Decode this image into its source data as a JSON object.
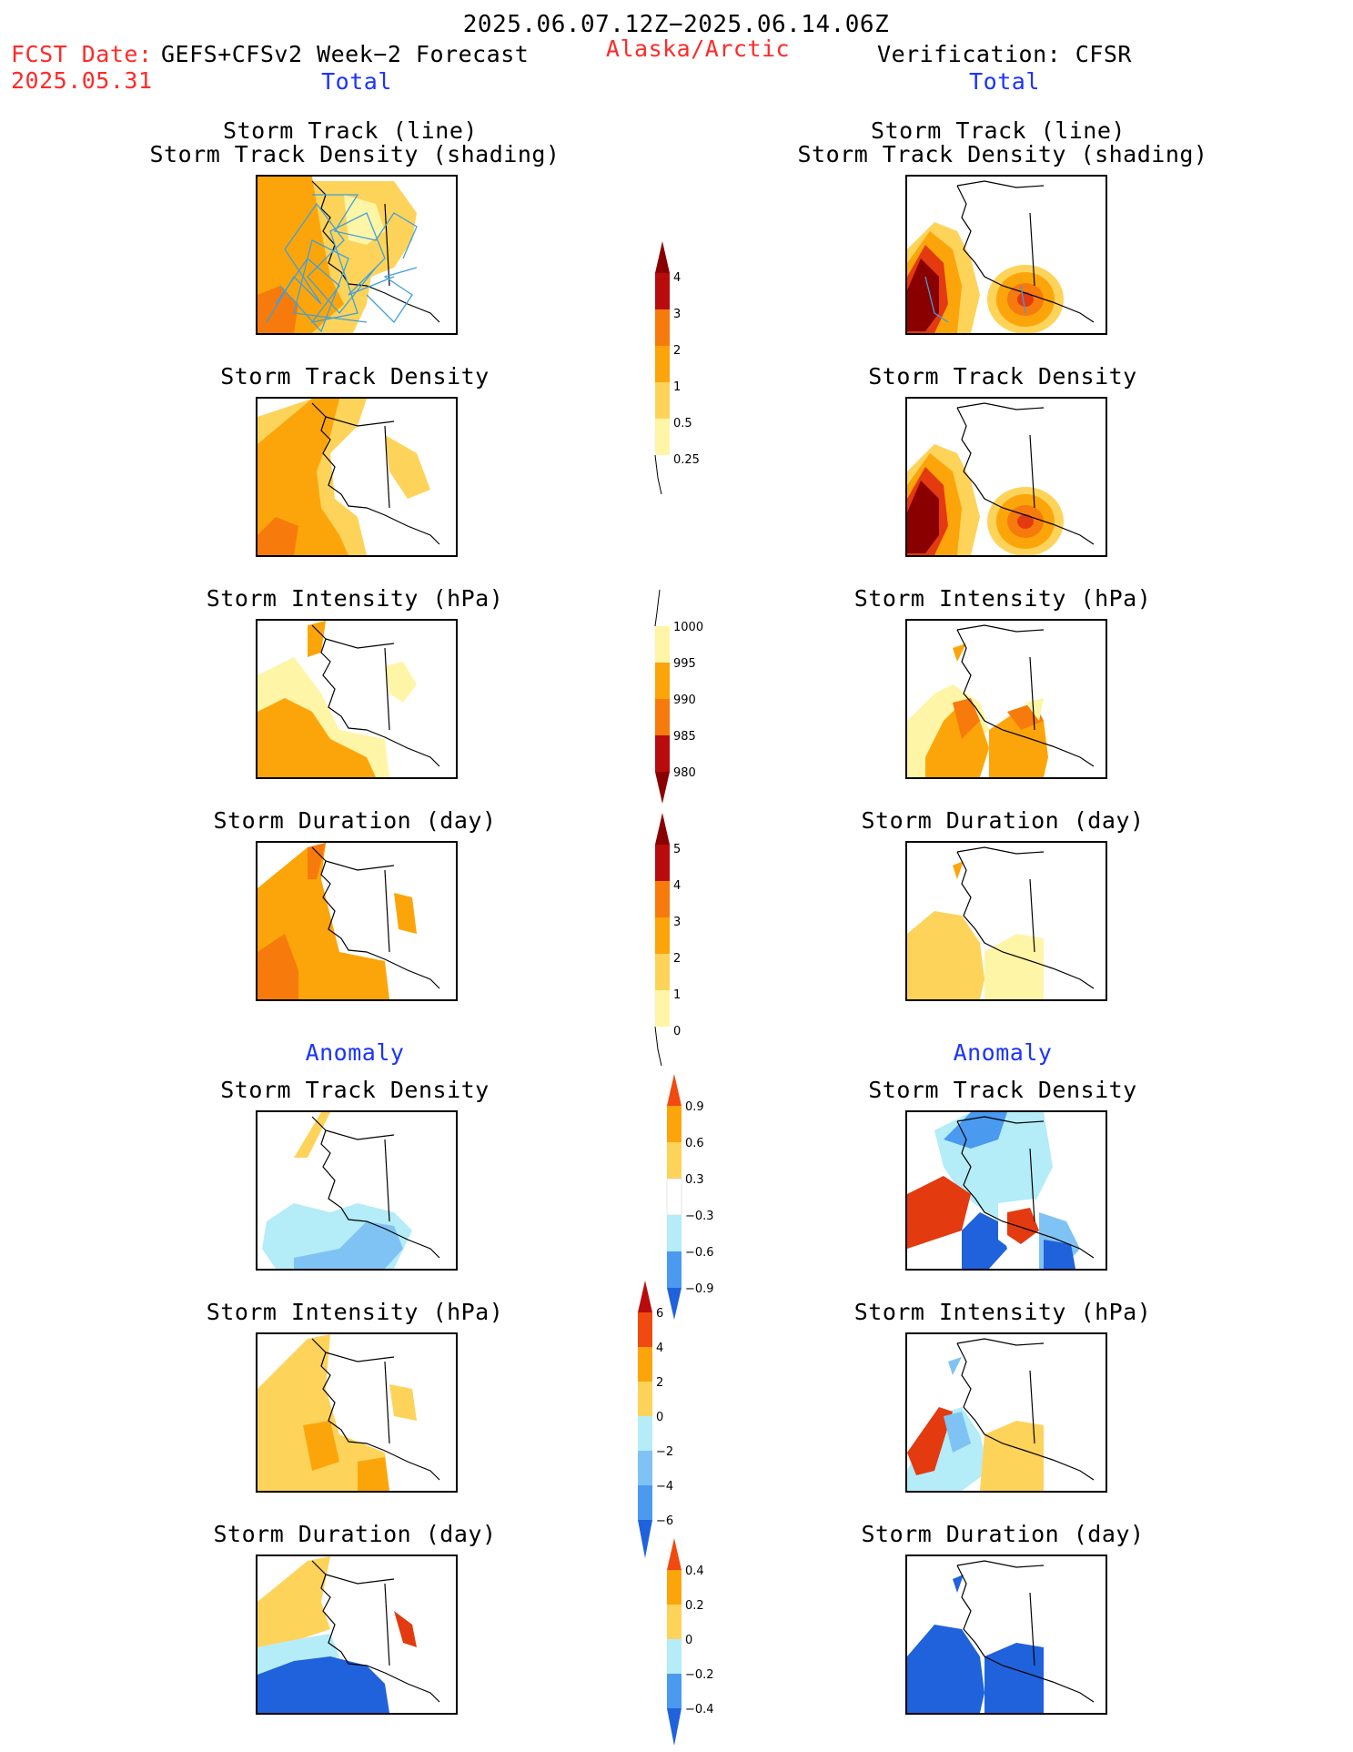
{
  "header": {
    "date_range": "2025.06.07.12Z−2025.06.14.06Z",
    "fcst_label": "FCST Date:",
    "fcst_model": "GEFS+CFSv2 Week−2 Forecast",
    "fcst_date": "2025.05.31",
    "region": "Alaska/Arctic",
    "verification": "Verification: CFSR"
  },
  "columns": {
    "left_total": "Total",
    "right_total": "Total",
    "left_anomaly": "Anomaly",
    "right_anomaly": "Anomaly"
  },
  "panel_titles": {
    "track_line": "Storm Track (line)",
    "track_shading": "Storm Track Density (shading)",
    "density": "Storm Track Density",
    "intensity": "Storm Intensity (hPa)",
    "duration": "Storm Duration (day)"
  },
  "colorbars": {
    "track_density": [
      "4",
      "3",
      "2",
      "1",
      "0.5",
      "0.25"
    ],
    "intensity": [
      "1000",
      "995",
      "990",
      "985",
      "980"
    ],
    "duration": [
      "5",
      "4",
      "3",
      "2",
      "1",
      "0"
    ],
    "density_anom": [
      "0.9",
      "0.6",
      "0.3",
      "−0.3",
      "−0.6",
      "−0.9"
    ],
    "intensity_anom": [
      "6",
      "4",
      "2",
      "0",
      "−2",
      "−4",
      "−6"
    ],
    "duration_anom": [
      "0.4",
      "0.2",
      "0",
      "−0.2",
      "−0.4"
    ]
  },
  "colors": {
    "title_red": "#ff2a2a",
    "title_blue": "#1a33ff",
    "warm": [
      "#fff5a6",
      "#fdd35a",
      "#fca50a",
      "#f77a0d",
      "#e33a10",
      "#b80c0c",
      "#8a0000"
    ],
    "cool": [
      "#ffffff",
      "#b4ecf8",
      "#7fc3f4",
      "#4a9af0",
      "#1f62dc"
    ]
  }
}
